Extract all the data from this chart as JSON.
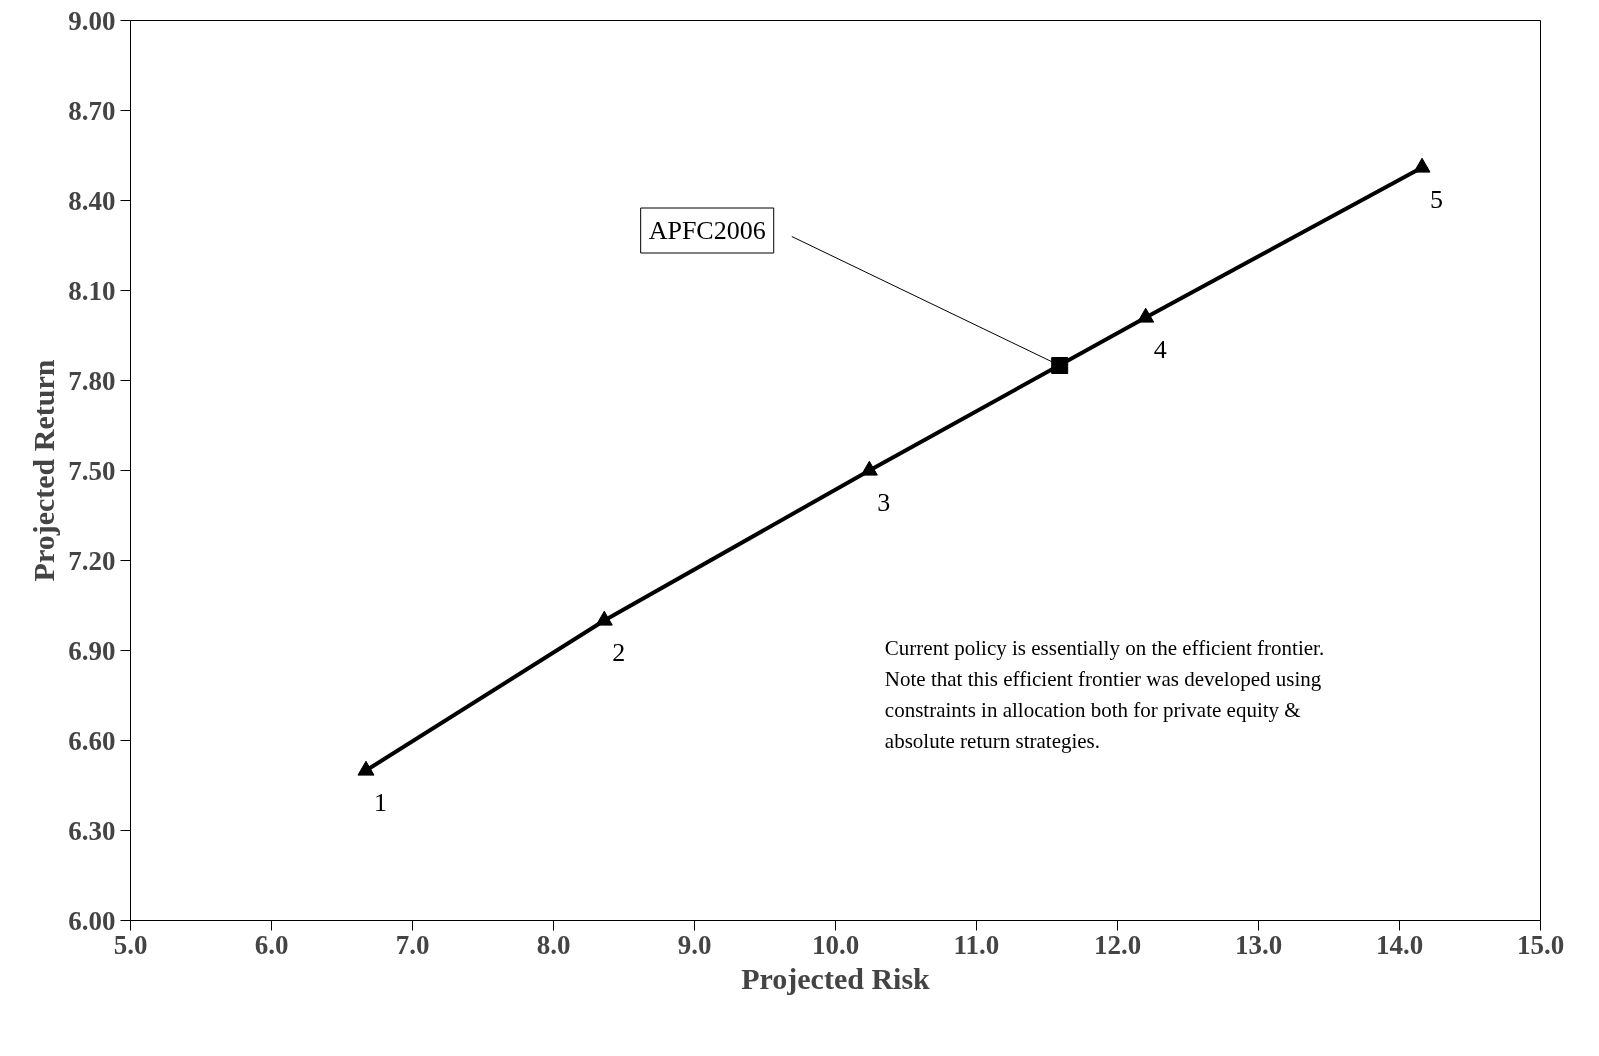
{
  "chart_data": {
    "type": "line",
    "xlabel": "Projected Risk",
    "ylabel": "Projected Return",
    "series": [
      {
        "color": "#000000",
        "marker": "triangle",
        "line_style": "solid",
        "x": [
          6.67,
          8.36,
          10.24,
          12.2,
          14.16
        ],
        "values": [
          6.5,
          7.0,
          7.5,
          8.01,
          8.51
        ]
      },
      {
        "type": "scatter",
        "color": "#000000",
        "marker": "square",
        "x": [
          11.59
        ],
        "values": [
          7.85
        ]
      }
    ],
    "xlim": [
      5.0,
      15.0
    ],
    "xticks": [
      {
        "value": 5,
        "label": "5.0"
      },
      {
        "value": 6,
        "label": "6.0"
      },
      {
        "value": 7,
        "label": "7.0"
      },
      {
        "value": 8,
        "label": "8.0"
      },
      {
        "value": 9,
        "label": "9.0"
      },
      {
        "value": 10,
        "label": "10.0"
      },
      {
        "value": 11,
        "label": "11.0"
      },
      {
        "value": 12,
        "label": "12.0"
      },
      {
        "value": 13,
        "label": "13.0"
      },
      {
        "value": 14,
        "label": "14.0"
      },
      {
        "value": 15,
        "label": "15.0"
      }
    ],
    "ylim": [
      6.0,
      9.0
    ],
    "yticks": [
      {
        "value": 6,
        "label": "6.00"
      },
      {
        "value": 6.3,
        "label": "6.30"
      },
      {
        "value": 6.6,
        "label": "6.60"
      },
      {
        "value": 6.9,
        "label": "6.90"
      },
      {
        "value": 7.2,
        "label": "7.20"
      },
      {
        "value": 7.5,
        "label": "7.50"
      },
      {
        "value": 7.8,
        "label": "7.80"
      },
      {
        "value": 8.1,
        "label": "8.10"
      },
      {
        "value": 8.4,
        "label": "8.40"
      },
      {
        "value": 8.7,
        "label": "8.70"
      },
      {
        "value": 9,
        "label": "9.00"
      }
    ],
    "grid": false,
    "annotations": [
      {
        "text": "1",
        "x": 6.67,
        "y": 6.5
      },
      {
        "text": "2",
        "x": 8.36,
        "y": 7.0
      },
      {
        "text": "3",
        "x": 10.24,
        "y": 7.5
      },
      {
        "text": "4",
        "x": 12.2,
        "y": 8.01
      },
      {
        "text": "5",
        "x": 14.16,
        "y": 8.51
      },
      {
        "text": "APFC2006",
        "x": 11.59,
        "y": 7.85
      },
      "Current policy is essentially on the efficient frontier. Note that this efficient frontier was developed using constraints in allocation both for private equity & absolute return strategies."
    ]
  }
}
